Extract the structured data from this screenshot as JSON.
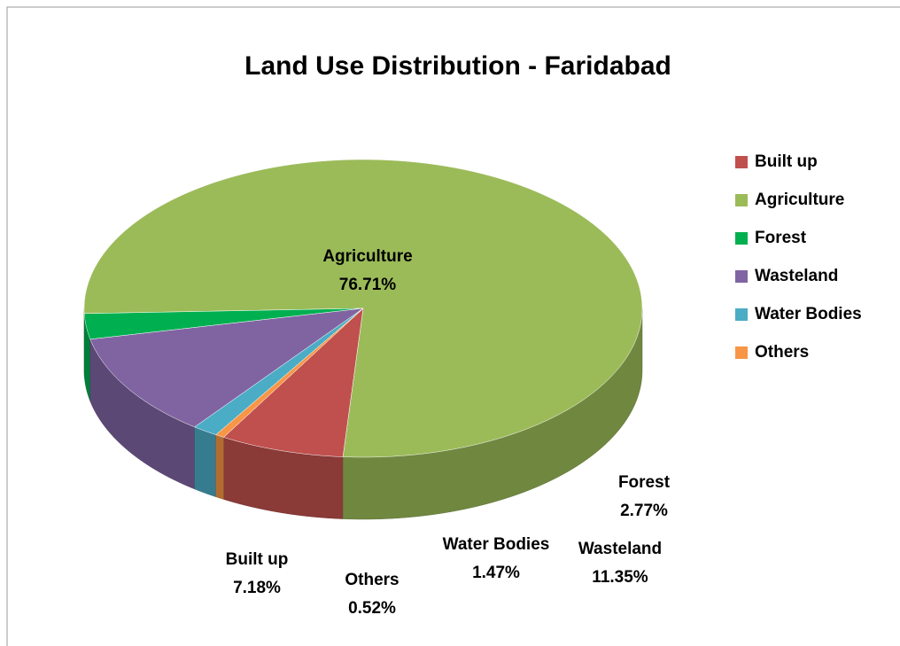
{
  "chart_data": {
    "type": "pie",
    "title": "Land Use Distribution - Faridabad",
    "categories": [
      "Built up",
      "Agriculture",
      "Forest",
      "Wasteland",
      "Water Bodies",
      "Others"
    ],
    "values": [
      7.18,
      76.71,
      2.77,
      11.35,
      1.47,
      0.52
    ],
    "value_labels": [
      "7.18%",
      "76.71%",
      "2.77%",
      "11.35%",
      "1.47%",
      "0.52%"
    ],
    "colors": [
      "#c0504d",
      "#9bbb59",
      "#00b050",
      "#8064a2",
      "#4bacc6",
      "#f79646"
    ],
    "legend": "right"
  }
}
